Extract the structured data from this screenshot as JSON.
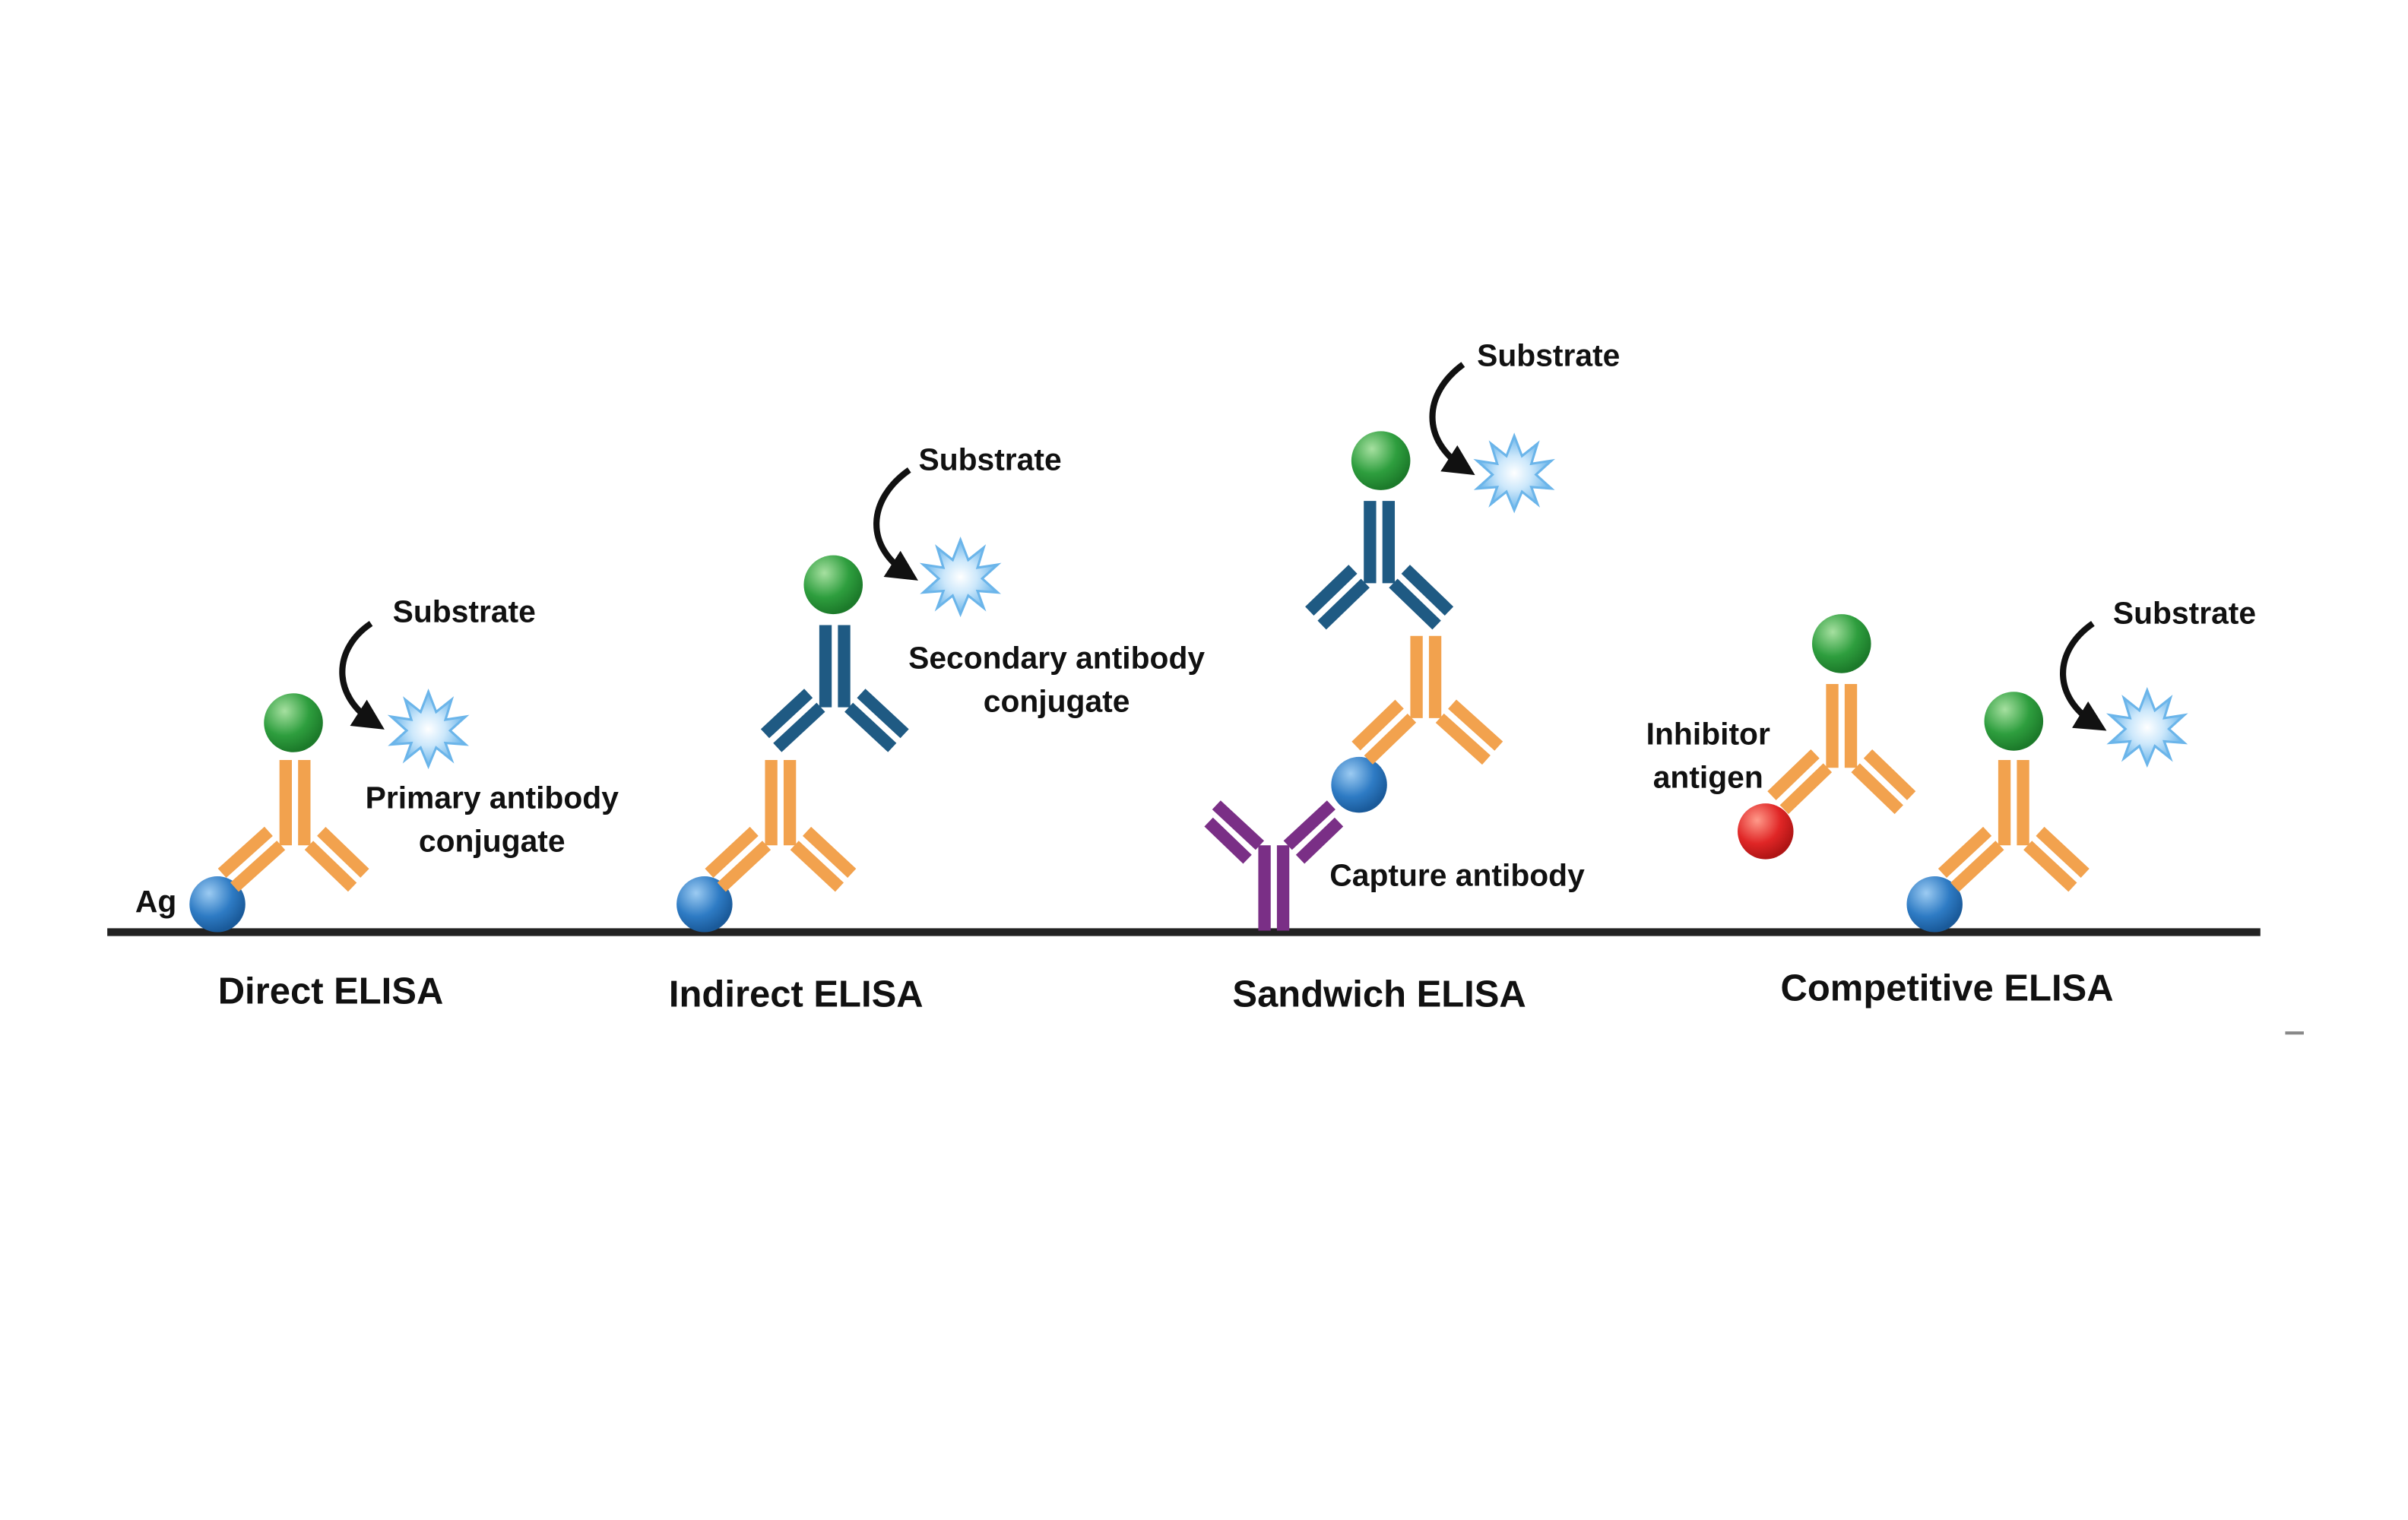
{
  "labels": {
    "ag": "Ag",
    "substrate": "Substrate",
    "primary_conjugate_line1": "Primary antibody",
    "primary_conjugate_line2": "conjugate",
    "secondary_conjugate_line1": "Secondary antibody",
    "secondary_conjugate_line2": "conjugate",
    "capture_antibody": "Capture antibody",
    "inhibitor_line1": "Inhibitor",
    "inhibitor_line2": "antigen"
  },
  "panels": [
    {
      "title": "Direct ELISA"
    },
    {
      "title": "Indirect ELISA"
    },
    {
      "title": "Sandwich ELISA"
    },
    {
      "title": "Competitive ELISA"
    }
  ],
  "colors": {
    "primary_antibody": "#F2A24E",
    "secondary_antibody": "#1F5A83",
    "capture_antibody": "#7A2F86",
    "antigen": "#2E7BC4",
    "enzyme": "#2E9E3E",
    "inhibitor_antigen": "#E02626",
    "substrate": "#6BB5EA",
    "surface": "#222222"
  }
}
